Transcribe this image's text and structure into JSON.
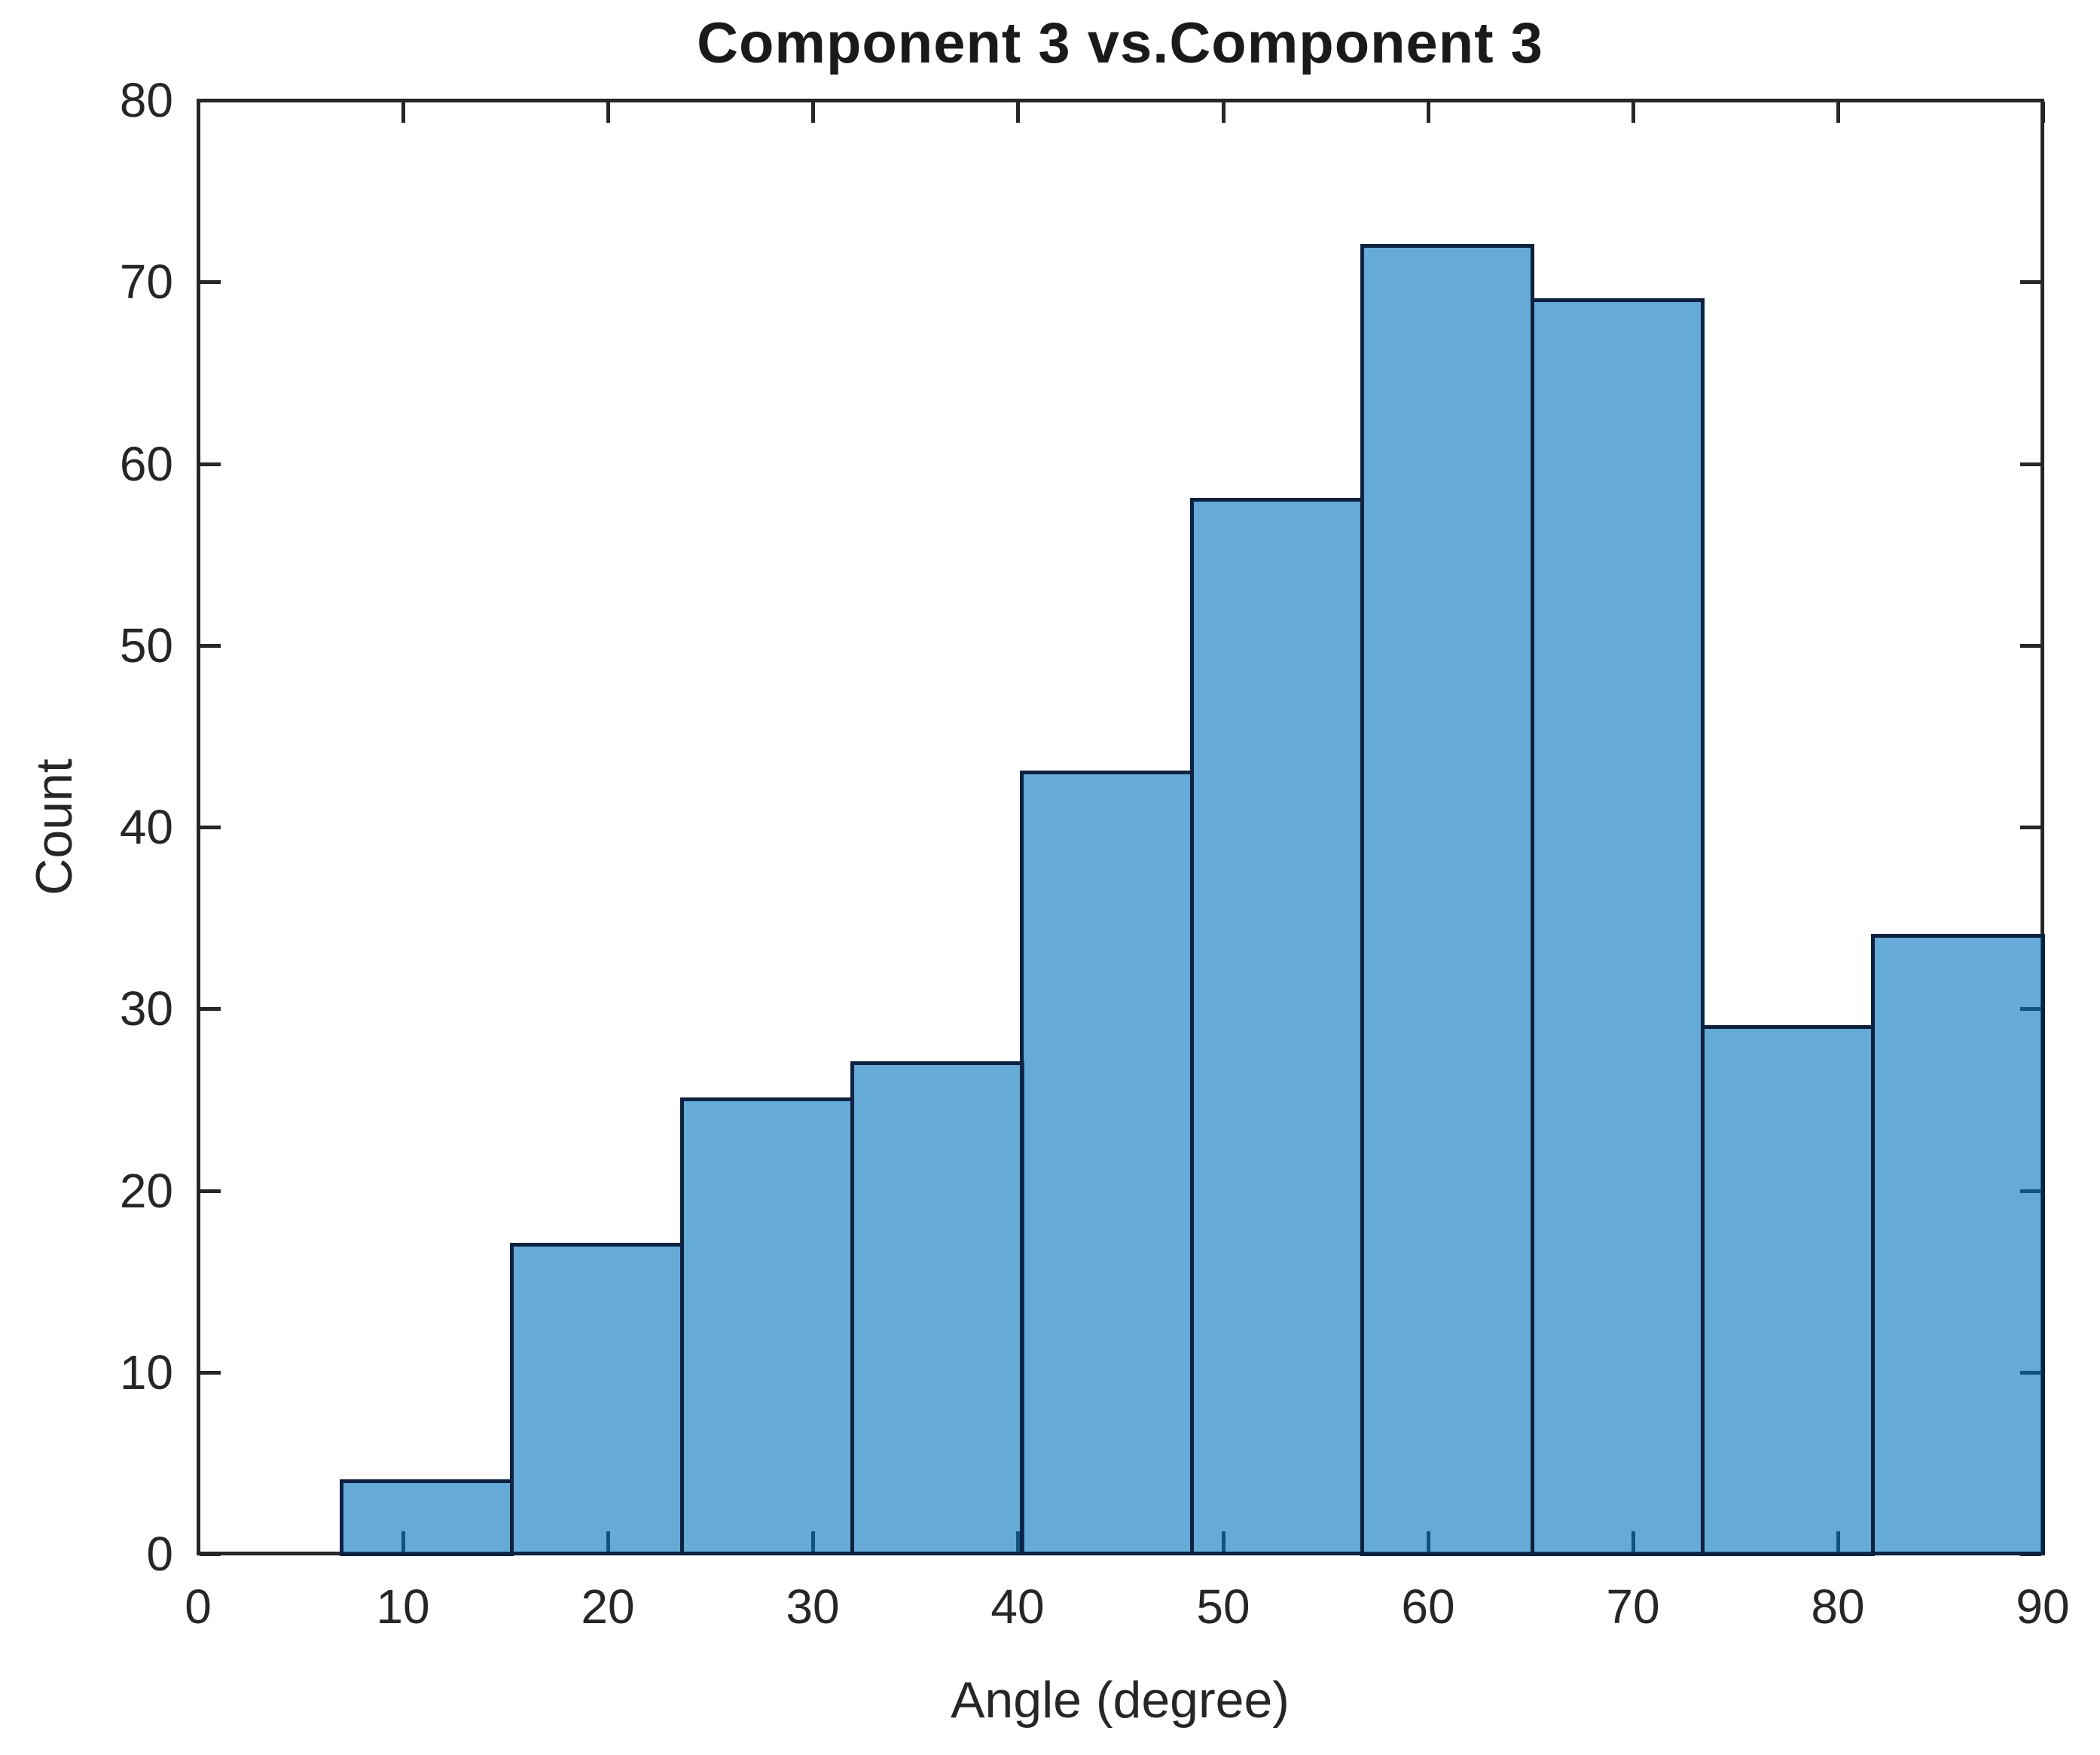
{
  "figure": {
    "background_color": "#ffffff",
    "axis_color": "#262626",
    "text_color": "#262626"
  },
  "chart_data": {
    "type": "bar",
    "subtype": "histogram",
    "title": "Component 3 vs.Component 3",
    "xlabel": "Angle (degree)",
    "ylabel": "Count",
    "xlim": [
      0,
      90
    ],
    "ylim": [
      0,
      80
    ],
    "x_ticks": [
      0,
      10,
      20,
      30,
      40,
      50,
      60,
      70,
      80,
      90
    ],
    "y_ticks": [
      0,
      10,
      20,
      30,
      40,
      50,
      60,
      70,
      80
    ],
    "bin_edges": [
      7,
      15.3,
      23.6,
      31.9,
      40.2,
      48.5,
      56.8,
      65.1,
      73.4,
      81.7,
      90
    ],
    "counts": [
      4,
      17,
      25,
      27,
      43,
      58,
      72,
      69,
      29,
      34
    ],
    "bar_fill_rgba": "rgba(0,114,189,0.6)",
    "bar_fill_hex_on_white": "#66a9d6",
    "bar_edge_color": "#0d2240",
    "grid": false,
    "legend": null,
    "tick_direction": "in",
    "box": true
  }
}
